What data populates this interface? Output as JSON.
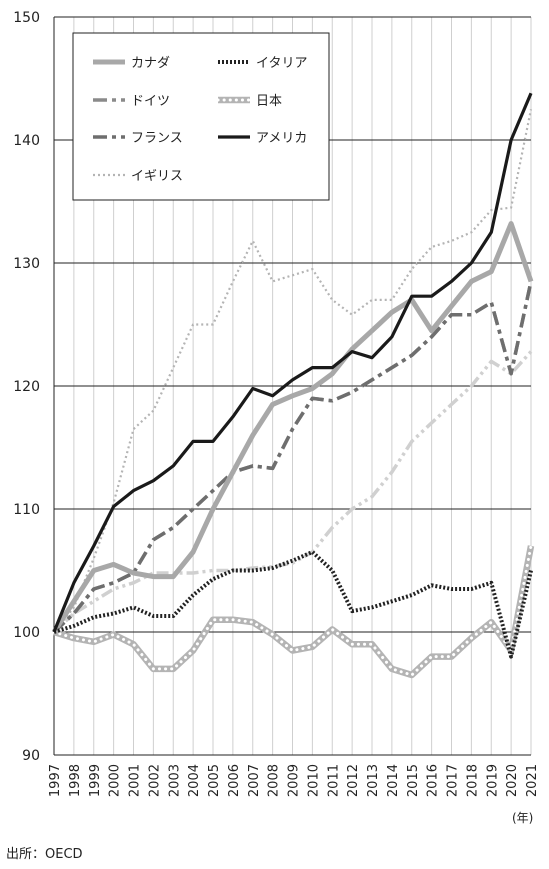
{
  "chart_data": {
    "type": "line",
    "title": "",
    "xlabel": "",
    "ylabel": "",
    "x_unit": "(年)",
    "ylim": [
      90,
      150
    ],
    "yticks": [
      90,
      100,
      110,
      120,
      130,
      140,
      150
    ],
    "grid": true,
    "legend_position": "top-left",
    "categories": [
      "1997",
      "1998",
      "1999",
      "2000",
      "2001",
      "2002",
      "2003",
      "2004",
      "2005",
      "2006",
      "2007",
      "2008",
      "2009",
      "2010",
      "2011",
      "2012",
      "2013",
      "2014",
      "2015",
      "2016",
      "2017",
      "2018",
      "2019",
      "2020",
      "2021"
    ],
    "series": [
      {
        "name": "カナダ",
        "style": "solid-thick",
        "color": "#a8a8a8",
        "values": [
          100,
          102.5,
          105,
          105.5,
          104.8,
          104.5,
          104.5,
          106.5,
          110,
          113,
          116,
          118.5,
          119.2,
          119.8,
          121,
          123,
          124.5,
          126,
          127,
          124.5,
          126.5,
          128.5,
          129.3,
          133.2,
          128.5
        ]
      },
      {
        "name": "ドイツ",
        "style": "dashdot",
        "color": "#8a8a8a",
        "values": [
          100,
          101.5,
          103.5,
          104,
          104.8,
          107.5,
          108.5,
          110,
          111.5,
          113,
          113.5,
          113.3,
          116.5,
          119,
          118.8,
          119.5,
          120.5,
          121.5,
          122.5,
          124,
          125.8,
          125.8,
          126.8,
          121,
          128.5
        ]
      },
      {
        "name": "フランス",
        "style": "dashdot",
        "color": "#6e6e6e",
        "values": [
          100,
          101.5,
          103.5,
          104,
          104.8,
          107.5,
          108.5,
          110,
          111.5,
          113,
          113.5,
          113.3,
          116.5,
          119,
          118.8,
          119.5,
          120.5,
          121.5,
          122.5,
          124,
          125.8,
          125.8,
          126.8,
          121,
          128.5
        ]
      },
      {
        "name": "イギリス",
        "style": "dotted",
        "color": "#b4b4b4",
        "values": [
          100,
          102,
          106,
          110.5,
          116.5,
          118,
          121.5,
          125,
          125,
          128.5,
          131.8,
          128.5,
          129,
          129.5,
          127,
          125.8,
          127,
          127,
          129.5,
          131.3,
          131.8,
          132.5,
          134.3,
          134.5,
          142.5
        ]
      },
      {
        "name": "イタリア",
        "style": "dotted-thick",
        "color": "#222222",
        "values": [
          100,
          100.5,
          101.2,
          101.5,
          102,
          101.3,
          101.3,
          103,
          104.3,
          105,
          105,
          105.2,
          105.8,
          106.5,
          105,
          101.7,
          102,
          102.5,
          103,
          103.8,
          103.5,
          103.5,
          104,
          98,
          105
        ]
      },
      {
        "name": "日本",
        "style": "dotted-band",
        "color": "#b4b4b4",
        "values": [
          100,
          99.5,
          99.2,
          99.8,
          99,
          97,
          97,
          98.5,
          101,
          101,
          100.8,
          99.8,
          98.5,
          98.8,
          100.2,
          99,
          99,
          97,
          96.5,
          98,
          98,
          99.5,
          100.8,
          98.5,
          107
        ]
      },
      {
        "name": "アメリカ",
        "style": "solid",
        "color": "#1a1a1a",
        "values": [
          100,
          104,
          107,
          110.2,
          111.5,
          112.3,
          113.5,
          115.5,
          115.5,
          117.5,
          119.8,
          119.2,
          120.5,
          121.5,
          121.5,
          122.8,
          122.3,
          124,
          127.3,
          127.3,
          128.5,
          130,
          132.5,
          140,
          143.8
        ]
      },
      {
        "name": "",
        "style": "dashdotdot",
        "color": "#d0d0d0",
        "values": [
          100,
          101.5,
          102.5,
          103.5,
          104,
          104.8,
          104.8,
          104.8,
          105,
          105,
          105.2,
          105.3,
          105.6,
          106.5,
          108.5,
          110,
          111,
          113,
          115.5,
          117,
          118.5,
          120,
          122,
          121,
          122.8
        ]
      }
    ]
  },
  "source": "出所：OECD"
}
